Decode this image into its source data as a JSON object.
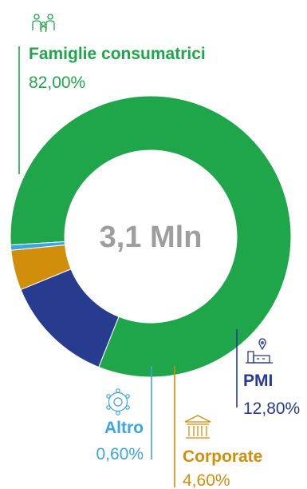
{
  "chart_data": {
    "type": "pie",
    "donut": true,
    "center_label": "3,1 Mln",
    "start_angle_deg": 183.45,
    "direction": "counterclockwise",
    "categories": [
      "Famiglie consumatrici",
      "PMI",
      "Corporate",
      "Altro"
    ],
    "values": [
      82.0,
      12.8,
      4.6,
      0.6
    ],
    "value_labels": [
      "82,00%",
      "12,80%",
      "4,60%",
      "0,60%"
    ],
    "colors": [
      "#1fa64a",
      "#273b8f",
      "#d18e0b",
      "#3aa6dd"
    ],
    "icons": [
      "family-icon",
      "factory-icon",
      "bank-building-icon",
      "network-gear-icon"
    ]
  }
}
